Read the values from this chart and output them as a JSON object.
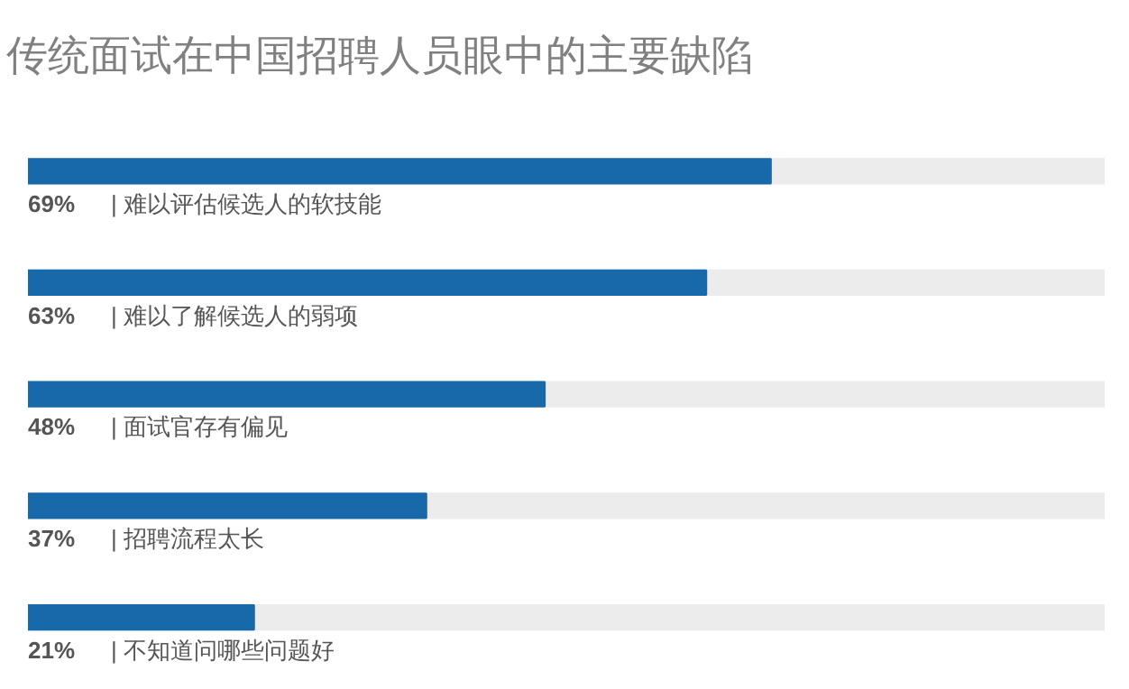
{
  "chart_data": {
    "type": "bar",
    "orientation": "horizontal",
    "title": "传统面试在中国招聘人员眼中的主要缺陷",
    "categories": [
      "|  难以评估候选人的软技能",
      "|  难以了解候选人的弱项",
      "|  面试官存有偏见",
      "|  招聘流程太长",
      "|  不知道问哪些问题好"
    ],
    "values": [
      69,
      63,
      48,
      37,
      21
    ],
    "value_labels": [
      "69%",
      "63%",
      "48%",
      "37%",
      "21%"
    ],
    "color": "#1769aa",
    "xlim": [
      0,
      100
    ],
    "tick_labels": false,
    "grid": false
  }
}
